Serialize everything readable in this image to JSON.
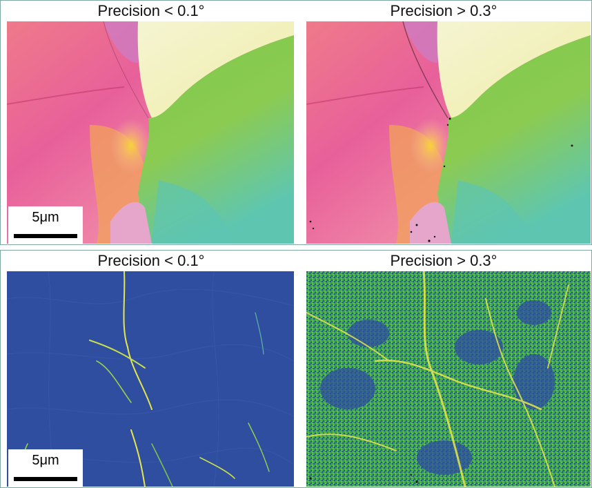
{
  "panels": {
    "top": {
      "left_title": "Precision < 0.1°",
      "right_title": "Precision > 0.3°",
      "scale_label": "5μm",
      "left_map": "ipf-orientation-map",
      "right_map": "ipf-orientation-map-noisy"
    },
    "bottom": {
      "left_title": "Precision < 0.1°",
      "right_title": "Precision > 0.3°",
      "scale_label": "5μm",
      "left_map": "kam-misorientation-map",
      "right_map": "kam-misorientation-map-noisy"
    }
  },
  "colors": {
    "border": "#7ea7a0",
    "grain_magenta": "#e8609a",
    "grain_green": "#7cc24a",
    "grain_cream": "#f3f0c0",
    "grain_yellow": "#f5c23a",
    "grain_teal": "#5fc8b0",
    "kam_blue": "#2f4ea0",
    "kam_green": "#4fb848",
    "kam_yellow": "#e6e84a"
  }
}
